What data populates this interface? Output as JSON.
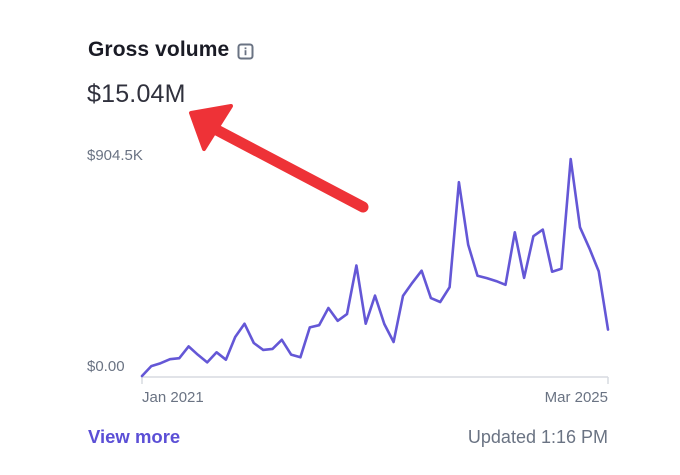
{
  "card": {
    "title": "Gross volume",
    "info_icon": "info-icon",
    "total": "$15.04M",
    "view_more": "View more",
    "updated": "Updated 1:16 PM"
  },
  "colors": {
    "line": "#6457d6",
    "annotation_arrow": "#ee3237",
    "link": "#5b4fd6",
    "muted_text": "#6a7383"
  },
  "annotation": {
    "type": "arrow",
    "points_to": "total"
  },
  "chart_data": {
    "type": "line",
    "title": "",
    "xlabel": "",
    "ylabel": "",
    "y_ticks": [
      "$904.5K",
      "$0.00"
    ],
    "x_ticks": [
      "Jan 2021",
      "Mar 2025"
    ],
    "ylim": [
      0,
      904500
    ],
    "grid": false,
    "series": [
      {
        "values": [
          0,
          40000,
          52000,
          68000,
          72000,
          120000,
          86000,
          55000,
          96000,
          66000,
          158000,
          212000,
          134000,
          106000,
          110000,
          147000,
          87000,
          76000,
          197000,
          206000,
          276000,
          224000,
          251000,
          448000,
          212000,
          326000,
          211000,
          138000,
          325000,
          378000,
          427000,
          316000,
          300000,
          360000,
          786000,
          532000,
          407000,
          397000,
          385000,
          370000,
          583000,
          398000,
          567000,
          594000,
          423000,
          435000,
          880000,
          603000,
          518000,
          425000,
          188000
        ]
      }
    ]
  }
}
